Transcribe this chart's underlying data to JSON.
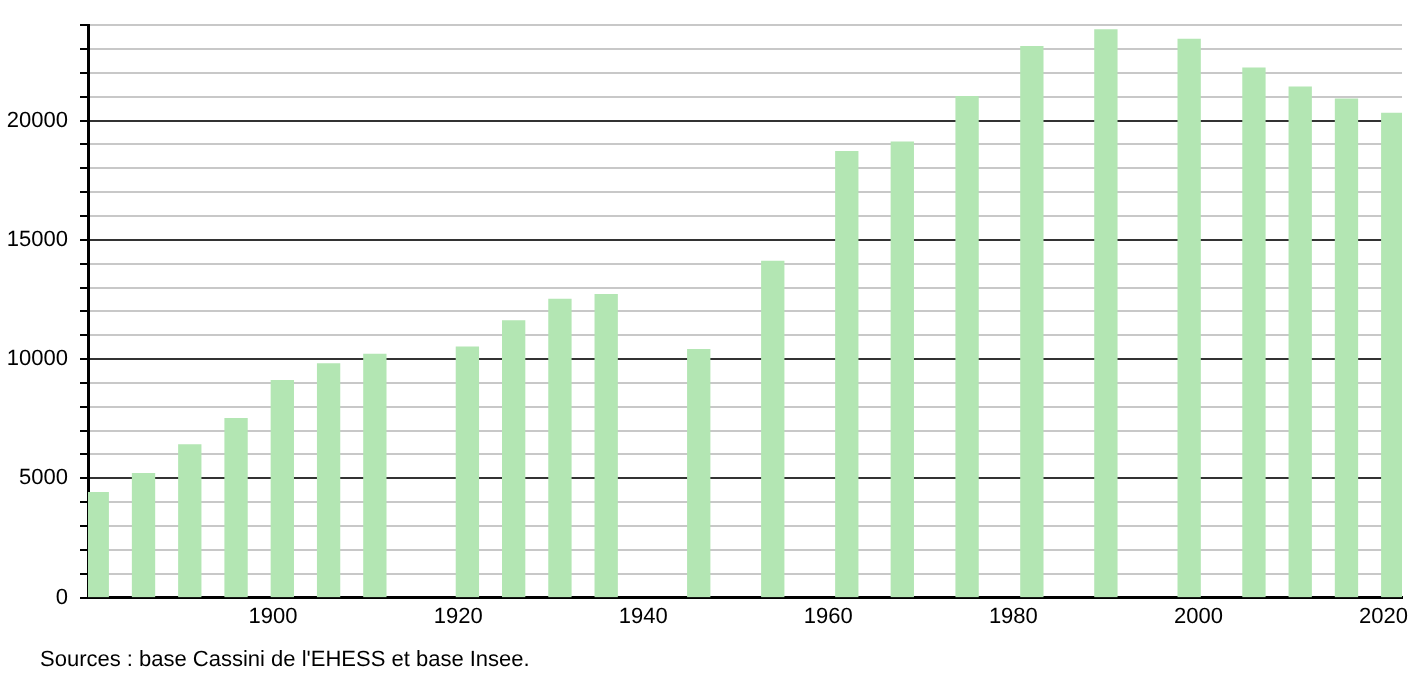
{
  "chart_data": {
    "type": "bar",
    "x": [
      1881,
      1886,
      1891,
      1896,
      1901,
      1906,
      1911,
      1921,
      1926,
      1931,
      1936,
      1946,
      1954,
      1962,
      1968,
      1975,
      1982,
      1990,
      1999,
      2006,
      2011,
      2016,
      2021
    ],
    "values": [
      4400,
      5200,
      6400,
      7500,
      9100,
      9800,
      10200,
      10500,
      11600,
      12500,
      12700,
      10400,
      14100,
      18700,
      19100,
      21000,
      23100,
      23800,
      23400,
      22200,
      21400,
      20900,
      20300
    ],
    "color": "#b3e6b3",
    "xlim": [
      1880,
      2022
    ],
    "xticks": [
      1900,
      1920,
      1940,
      1960,
      1980,
      2000,
      2020
    ],
    "ylim": [
      0,
      24000
    ],
    "yticks": [
      0,
      {
        "value": 1000,
        "label": null
      },
      {
        "value": 2000,
        "label": null
      },
      {
        "value": 3000,
        "label": null
      },
      {
        "value": 4000,
        "label": null
      },
      5000,
      {
        "value": 6000,
        "label": null
      },
      {
        "value": 7000,
        "label": null
      },
      {
        "value": 8000,
        "label": null
      },
      {
        "value": 9000,
        "label": null
      },
      10000,
      {
        "value": 11000,
        "label": null
      },
      {
        "value": 12000,
        "label": null
      },
      {
        "value": 13000,
        "label": null
      },
      {
        "value": 14000,
        "label": null
      },
      15000,
      {
        "value": 16000,
        "label": null
      },
      {
        "value": 17000,
        "label": null
      },
      {
        "value": 18000,
        "label": null
      },
      {
        "value": 19000,
        "label": null
      },
      20000,
      {
        "value": 21000,
        "label": null
      },
      {
        "value": 22000,
        "label": null
      },
      {
        "value": 23000,
        "label": null
      },
      {
        "value": 24000,
        "label": null
      }
    ],
    "grid": "y",
    "annotations": [
      "Sources : base Cassini de l'EHESS et base Insee."
    ]
  }
}
